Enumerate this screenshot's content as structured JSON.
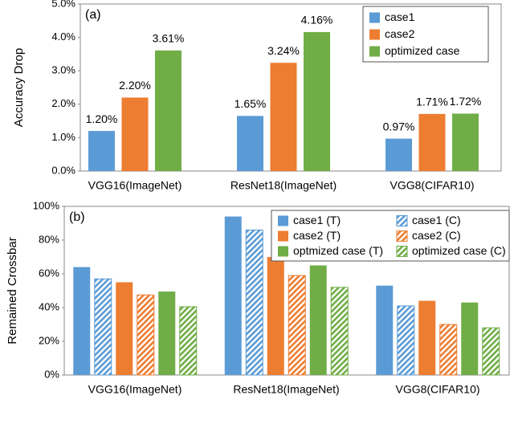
{
  "chart_data": [
    {
      "type": "bar",
      "annotation": "(a)",
      "y_label": "Accuracy Drop",
      "categories": [
        "VGG16(ImageNet)",
        "ResNet18(ImageNet)",
        "VGG8(CIFAR10)"
      ],
      "series": [
        {
          "name": "case1",
          "color": "#5b9bd5",
          "values": [
            1.2,
            1.65,
            0.97
          ],
          "value_labels": [
            "1.20%",
            "1.65%",
            "0.97%"
          ]
        },
        {
          "name": "case2",
          "color": "#ed7d31",
          "values": [
            2.2,
            3.24,
            1.71
          ],
          "value_labels": [
            "2.20%",
            "3.24%",
            "1.71%"
          ]
        },
        {
          "name": "optimized case",
          "color": "#70ad47",
          "values": [
            3.61,
            4.16,
            1.72
          ],
          "value_labels": [
            "3.61%",
            "4.16%",
            "1.72%"
          ]
        }
      ],
      "ylim": [
        0,
        5
      ],
      "yticks": [
        {
          "value": 0,
          "label": "0.0%"
        },
        {
          "value": 1,
          "label": "1.0%"
        },
        {
          "value": 2,
          "label": "2.0%"
        },
        {
          "value": 3,
          "label": "3.0%"
        },
        {
          "value": 4,
          "label": "4.0%"
        },
        {
          "value": 5,
          "label": "5.0%"
        }
      ],
      "legend": "upper right",
      "legend_columns": 1
    },
    {
      "type": "bar",
      "annotation": "(b)",
      "y_label": "Remained Crossbar",
      "categories": [
        "VGG16(ImageNet)",
        "ResNet18(ImageNet)",
        "VGG8(CIFAR10)"
      ],
      "series": [
        {
          "name": "case1 (T)",
          "color": "#5b9bd5",
          "hatch": false,
          "values": [
            64,
            94,
            53
          ]
        },
        {
          "name": "case1 (C)",
          "color": "#5b9bd5",
          "hatch": true,
          "values": [
            57,
            86,
            41
          ]
        },
        {
          "name": "case2 (T)",
          "color": "#ed7d31",
          "hatch": false,
          "values": [
            55,
            70,
            44
          ]
        },
        {
          "name": "case2 (C)",
          "color": "#ed7d31",
          "hatch": true,
          "values": [
            47.5,
            59,
            30
          ]
        },
        {
          "name": "optmized case (T)",
          "color": "#70ad47",
          "hatch": false,
          "values": [
            49.5,
            65,
            43
          ]
        },
        {
          "name": "optimized case (C)",
          "color": "#70ad47",
          "hatch": true,
          "values": [
            40.5,
            52,
            28
          ]
        }
      ],
      "ylim": [
        0,
        100
      ],
      "yticks": [
        {
          "value": 0,
          "label": "0%"
        },
        {
          "value": 20,
          "label": "20%"
        },
        {
          "value": 40,
          "label": "40%"
        },
        {
          "value": 60,
          "label": "60%"
        },
        {
          "value": 80,
          "label": "80%"
        },
        {
          "value": 100,
          "label": "100%"
        }
      ],
      "legend": "upper right",
      "legend_columns": 2
    }
  ]
}
